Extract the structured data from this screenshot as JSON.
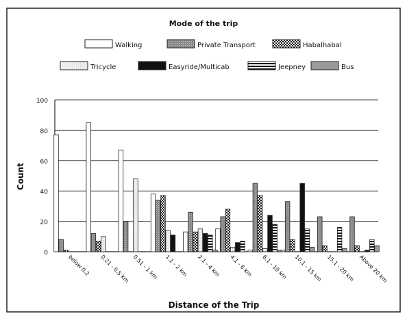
{
  "chart_data": {
    "type": "bar",
    "legend_title": "Mode of the trip",
    "legend_placement": "top",
    "xlabel": "Distance of the Trip",
    "ylabel": "Count",
    "ylim": [
      0,
      100
    ],
    "yticks": [
      0,
      20,
      40,
      60,
      80,
      100
    ],
    "grid": true,
    "categories": [
      "below 0.2",
      "0.21 - 0.5 km",
      "0.51 - 1 km",
      "1.1 - 2 km",
      "2.1 - 4 km",
      "4.1 - 6 km",
      "6.1 - 10 km",
      "10.1 - 15 km",
      "15.1 - 20 km",
      "Above 20 km"
    ],
    "series": [
      {
        "name": "Walking",
        "pattern": "white",
        "values": [
          77,
          85,
          67,
          38,
          13,
          15,
          1,
          1,
          0,
          0
        ]
      },
      {
        "name": "Private Transport",
        "pattern": "dots",
        "values": [
          8,
          12,
          20,
          34,
          26,
          23,
          45,
          33,
          23,
          23
        ]
      },
      {
        "name": "Habalhabal",
        "pattern": "checker",
        "values": [
          1,
          7,
          0,
          37,
          13,
          28,
          37,
          8,
          4,
          4
        ]
      },
      {
        "name": "Tricycle",
        "pattern": "light",
        "values": [
          0,
          10,
          48,
          14,
          15,
          3,
          2,
          0,
          0,
          0
        ]
      },
      {
        "name": "Easyride/Multicab",
        "pattern": "black",
        "values": [
          0,
          0,
          0,
          11,
          12,
          6,
          24,
          45,
          0,
          1
        ]
      },
      {
        "name": "Jeepney",
        "pattern": "stripes",
        "values": [
          0,
          0,
          0,
          0,
          11,
          7,
          18,
          15,
          16,
          8
        ]
      },
      {
        "name": "Bus",
        "pattern": "gray",
        "values": [
          0,
          0,
          0,
          0,
          1,
          0,
          1,
          3,
          2,
          4
        ]
      }
    ]
  }
}
